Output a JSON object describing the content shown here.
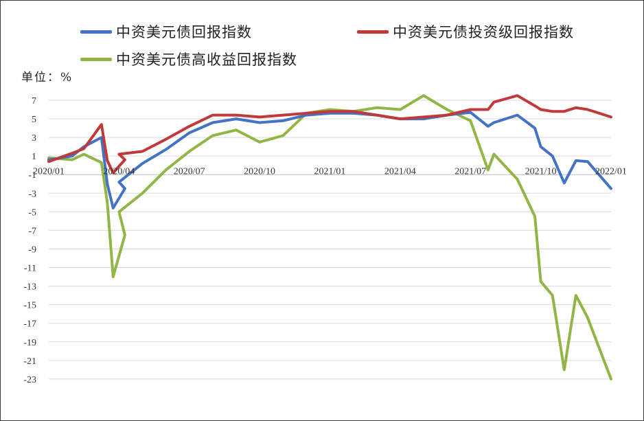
{
  "chart_data": {
    "type": "line",
    "title": "",
    "unit_label": "单位：%",
    "ylim": [
      -23,
      8
    ],
    "y_ticks": [
      7,
      5,
      3,
      1,
      -1,
      -3,
      -5,
      -7,
      -9,
      -11,
      -13,
      -15,
      -17,
      -19,
      -21,
      -23
    ],
    "x_ticks": [
      "2020/01",
      "2020/04",
      "2020/07",
      "2020/10",
      "2021/01",
      "2021/04",
      "2021/07",
      "2021/10",
      "2022/01"
    ],
    "grid": "horizontal",
    "legend_position": "top",
    "series": [
      {
        "name": "中资美元债回报指数",
        "color": "#4472c4",
        "points": [
          [
            "2020/01",
            0.6
          ],
          [
            "2020/02",
            1.0
          ],
          [
            "2020/02 mid",
            2.0
          ],
          [
            "2020/03 early",
            3.0
          ],
          [
            "2020/03 mid",
            -2.0
          ],
          [
            "2020/03 late",
            -4.6
          ],
          [
            "2020/04 early",
            -2.5
          ],
          [
            "2020/04",
            -1.8
          ],
          [
            "2020/05",
            0.2
          ],
          [
            "2020/06",
            1.7
          ],
          [
            "2020/07",
            3.5
          ],
          [
            "2020/08",
            4.6
          ],
          [
            "2020/09",
            5.0
          ],
          [
            "2020/10",
            4.6
          ],
          [
            "2020/11",
            4.8
          ],
          [
            "2020/12",
            5.4
          ],
          [
            "2021/01",
            5.6
          ],
          [
            "2021/02",
            5.6
          ],
          [
            "2021/03",
            5.4
          ],
          [
            "2021/04",
            5.0
          ],
          [
            "2021/05",
            5.0
          ],
          [
            "2021/06",
            5.4
          ],
          [
            "2021/07",
            5.7
          ],
          [
            "2021/07 late",
            4.2
          ],
          [
            "2021/08",
            4.6
          ],
          [
            "2021/09",
            5.4
          ],
          [
            "2021/09 late",
            4.0
          ],
          [
            "2021/10",
            2.0
          ],
          [
            "2021/10 mid",
            1.0
          ],
          [
            "2021/11",
            -1.9
          ],
          [
            "2021/11 mid",
            0.5
          ],
          [
            "2021/12",
            0.4
          ],
          [
            "2022/01",
            -2.5
          ]
        ]
      },
      {
        "name": "中资美元债投资级回报指数",
        "color": "#c0393b",
        "points": [
          [
            "2020/01",
            0.4
          ],
          [
            "2020/02",
            1.3
          ],
          [
            "2020/02 mid",
            1.8
          ],
          [
            "2020/03 early",
            4.4
          ],
          [
            "2020/03 mid",
            0.5
          ],
          [
            "2020/03 late",
            -0.8
          ],
          [
            "2020/04 early",
            0.6
          ],
          [
            "2020/04",
            1.2
          ],
          [
            "2020/05",
            1.5
          ],
          [
            "2020/06",
            2.8
          ],
          [
            "2020/07",
            4.2
          ],
          [
            "2020/08",
            5.4
          ],
          [
            "2020/09",
            5.4
          ],
          [
            "2020/10",
            5.2
          ],
          [
            "2020/11",
            5.4
          ],
          [
            "2020/12",
            5.6
          ],
          [
            "2021/01",
            5.8
          ],
          [
            "2021/02",
            5.8
          ],
          [
            "2021/03",
            5.4
          ],
          [
            "2021/04",
            5.0
          ],
          [
            "2021/05",
            5.2
          ],
          [
            "2021/06",
            5.4
          ],
          [
            "2021/07",
            6.0
          ],
          [
            "2021/07 late",
            6.0
          ],
          [
            "2021/08",
            6.8
          ],
          [
            "2021/09",
            7.5
          ],
          [
            "2021/09 late",
            6.4
          ],
          [
            "2021/10",
            6.0
          ],
          [
            "2021/10 mid",
            5.8
          ],
          [
            "2021/11",
            5.8
          ],
          [
            "2021/11 mid",
            6.2
          ],
          [
            "2021/12",
            6.0
          ],
          [
            "2022/01",
            5.2
          ]
        ]
      },
      {
        "name": "中资美元债高收益回报指数",
        "color": "#92b646",
        "points": [
          [
            "2020/01",
            0.8
          ],
          [
            "2020/02",
            0.6
          ],
          [
            "2020/02 mid",
            1.2
          ],
          [
            "2020/03 early",
            0.3
          ],
          [
            "2020/03 mid",
            -4.0
          ],
          [
            "2020/03 late",
            -12.0
          ],
          [
            "2020/04 early",
            -7.5
          ],
          [
            "2020/04",
            -5.0
          ],
          [
            "2020/05",
            -3.0
          ],
          [
            "2020/06",
            -0.5
          ],
          [
            "2020/07",
            1.5
          ],
          [
            "2020/08",
            3.2
          ],
          [
            "2020/09",
            3.8
          ],
          [
            "2020/10",
            2.5
          ],
          [
            "2020/11",
            3.2
          ],
          [
            "2020/12",
            5.6
          ],
          [
            "2021/01",
            6.0
          ],
          [
            "2021/02",
            5.8
          ],
          [
            "2021/03",
            6.2
          ],
          [
            "2021/04",
            6.0
          ],
          [
            "2021/05",
            7.5
          ],
          [
            "2021/06",
            6.0
          ],
          [
            "2021/07",
            4.8
          ],
          [
            "2021/07 late",
            -0.5
          ],
          [
            "2021/08",
            1.2
          ],
          [
            "2021/09",
            -1.5
          ],
          [
            "2021/09 late",
            -5.5
          ],
          [
            "2021/10",
            -12.5
          ],
          [
            "2021/10 mid",
            -14.0
          ],
          [
            "2021/11",
            -22.0
          ],
          [
            "2021/11 mid",
            -14.0
          ],
          [
            "2021/12",
            -16.4
          ],
          [
            "2022/01",
            -23.0
          ]
        ]
      }
    ]
  }
}
